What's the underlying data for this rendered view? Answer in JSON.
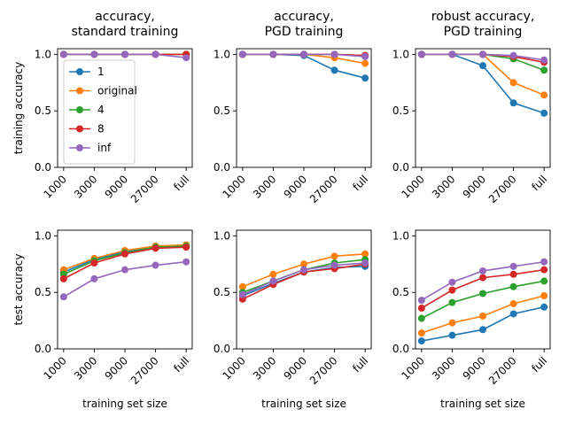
{
  "chart_data": [
    {
      "type": "line",
      "title": [
        "accuracy,",
        "standard training"
      ],
      "ylabel": "training accuracy",
      "xlabel": "",
      "categories": [
        "1000",
        "3000",
        "9000",
        "27000",
        "full"
      ],
      "yticks": [
        "0.0",
        "0.5",
        "1.0"
      ],
      "ylim": [
        0,
        1.05
      ],
      "series": [
        {
          "name": "1",
          "values": [
            1.0,
            1.0,
            1.0,
            1.0,
            1.0
          ]
        },
        {
          "name": "original",
          "values": [
            1.0,
            1.0,
            1.0,
            1.0,
            1.0
          ]
        },
        {
          "name": "4",
          "values": [
            1.0,
            1.0,
            1.0,
            1.0,
            1.0
          ]
        },
        {
          "name": "8",
          "values": [
            1.0,
            1.0,
            1.0,
            1.0,
            1.0
          ]
        },
        {
          "name": "inf",
          "values": [
            1.0,
            1.0,
            1.0,
            1.0,
            0.97
          ]
        }
      ],
      "legend": "center-left"
    },
    {
      "type": "line",
      "title": [
        "accuracy,",
        "PGD training"
      ],
      "ylabel": "",
      "xlabel": "",
      "categories": [
        "1000",
        "3000",
        "9000",
        "27000",
        "full"
      ],
      "yticks": [
        "0.0",
        "0.5",
        "1.0"
      ],
      "ylim": [
        0,
        1.05
      ],
      "series": [
        {
          "name": "1",
          "values": [
            1.0,
            1.0,
            0.99,
            0.86,
            0.79
          ]
        },
        {
          "name": "original",
          "values": [
            1.0,
            1.0,
            1.0,
            0.97,
            0.92
          ]
        },
        {
          "name": "4",
          "values": [
            1.0,
            1.0,
            1.0,
            1.0,
            0.99
          ]
        },
        {
          "name": "8",
          "values": [
            1.0,
            1.0,
            1.0,
            1.0,
            0.99
          ]
        },
        {
          "name": "inf",
          "values": [
            1.0,
            1.0,
            1.0,
            1.0,
            0.98
          ]
        }
      ]
    },
    {
      "type": "line",
      "title": [
        "robust accuracy,",
        "PGD training"
      ],
      "ylabel": "",
      "xlabel": "",
      "categories": [
        "1000",
        "3000",
        "9000",
        "27000",
        "full"
      ],
      "yticks": [
        "0.0",
        "0.5",
        "1.0"
      ],
      "ylim": [
        0,
        1.05
      ],
      "series": [
        {
          "name": "1",
          "values": [
            1.0,
            1.0,
            0.9,
            0.57,
            0.48
          ]
        },
        {
          "name": "original",
          "values": [
            1.0,
            1.0,
            1.0,
            0.75,
            0.64
          ]
        },
        {
          "name": "4",
          "values": [
            1.0,
            1.0,
            1.0,
            0.96,
            0.86
          ]
        },
        {
          "name": "8",
          "values": [
            1.0,
            1.0,
            1.0,
            0.98,
            0.93
          ]
        },
        {
          "name": "inf",
          "values": [
            1.0,
            1.0,
            1.0,
            0.99,
            0.95
          ]
        }
      ]
    },
    {
      "type": "line",
      "title": [],
      "ylabel": "test accuracy",
      "xlabel": "training set size",
      "categories": [
        "1000",
        "3000",
        "9000",
        "27000",
        "full"
      ],
      "yticks": [
        "0.0",
        "0.5",
        "1.0"
      ],
      "ylim": [
        0,
        1.05
      ],
      "series": [
        {
          "name": "1",
          "values": [
            0.68,
            0.79,
            0.86,
            0.9,
            0.91
          ]
        },
        {
          "name": "original",
          "values": [
            0.7,
            0.8,
            0.87,
            0.91,
            0.92
          ]
        },
        {
          "name": "4",
          "values": [
            0.66,
            0.78,
            0.85,
            0.9,
            0.91
          ]
        },
        {
          "name": "8",
          "values": [
            0.62,
            0.76,
            0.84,
            0.89,
            0.9
          ]
        },
        {
          "name": "inf",
          "values": [
            0.46,
            0.62,
            0.7,
            0.74,
            0.77
          ]
        }
      ]
    },
    {
      "type": "line",
      "title": [],
      "ylabel": "",
      "xlabel": "training set size",
      "categories": [
        "1000",
        "3000",
        "9000",
        "27000",
        "full"
      ],
      "yticks": [
        "0.0",
        "0.5",
        "1.0"
      ],
      "ylim": [
        0,
        1.05
      ],
      "series": [
        {
          "name": "1",
          "values": [
            0.47,
            0.58,
            0.68,
            0.72,
            0.73
          ]
        },
        {
          "name": "original",
          "values": [
            0.55,
            0.66,
            0.75,
            0.82,
            0.84
          ]
        },
        {
          "name": "4",
          "values": [
            0.5,
            0.6,
            0.7,
            0.76,
            0.79
          ]
        },
        {
          "name": "8",
          "values": [
            0.44,
            0.57,
            0.68,
            0.71,
            0.75
          ]
        },
        {
          "name": "inf",
          "values": [
            0.48,
            0.6,
            0.7,
            0.74,
            0.76
          ]
        }
      ]
    },
    {
      "type": "line",
      "title": [],
      "ylabel": "",
      "xlabel": "training set size",
      "categories": [
        "1000",
        "3000",
        "9000",
        "27000",
        "full"
      ],
      "yticks": [
        "0.0",
        "0.5",
        "1.0"
      ],
      "ylim": [
        0,
        1.05
      ],
      "series": [
        {
          "name": "1",
          "values": [
            0.07,
            0.12,
            0.17,
            0.31,
            0.37
          ]
        },
        {
          "name": "original",
          "values": [
            0.14,
            0.23,
            0.29,
            0.4,
            0.47
          ]
        },
        {
          "name": "4",
          "values": [
            0.27,
            0.41,
            0.49,
            0.55,
            0.6
          ]
        },
        {
          "name": "8",
          "values": [
            0.36,
            0.52,
            0.63,
            0.66,
            0.7
          ]
        },
        {
          "name": "inf",
          "values": [
            0.43,
            0.59,
            0.69,
            0.73,
            0.77
          ]
        }
      ]
    }
  ],
  "colors": {
    "1": "#1f77b4",
    "original": "#ff7f0e",
    "4": "#2ca02c",
    "8": "#d62728",
    "inf": "#9467bd"
  }
}
